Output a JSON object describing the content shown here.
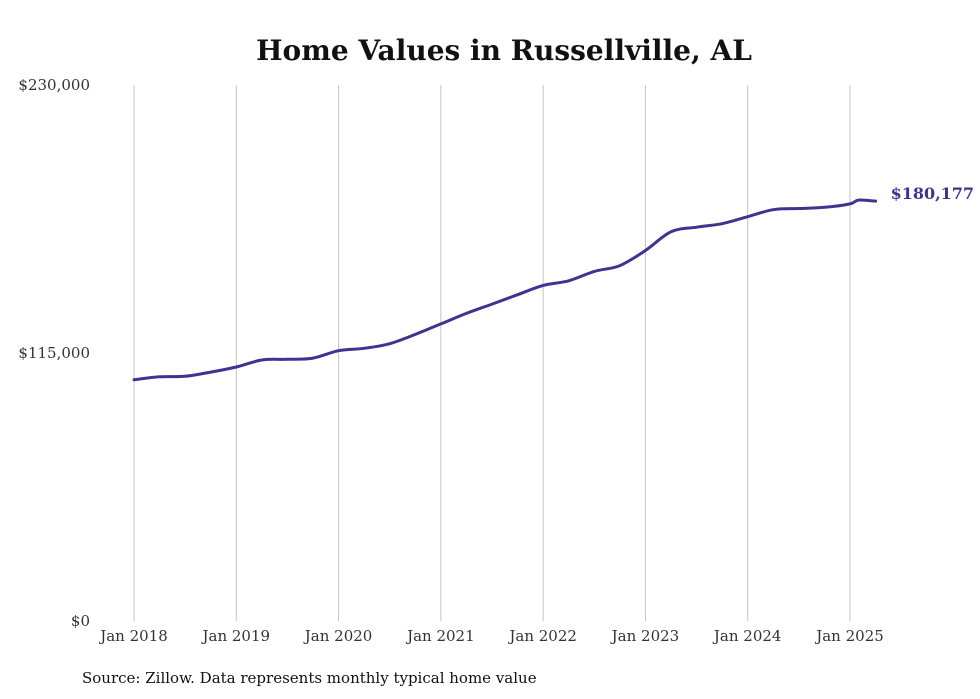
{
  "chart_data": {
    "type": "line",
    "title": "Home Values in Russellville, AL",
    "xlabel": "",
    "ylabel": "",
    "ylim": [
      0,
      230000
    ],
    "y_ticks": [
      {
        "value": 0,
        "label": "$0"
      },
      {
        "value": 115000,
        "label": "$115,000"
      },
      {
        "value": 230000,
        "label": "$230,000"
      }
    ],
    "x_ticks": [
      {
        "value": "2018-01",
        "label": "Jan 2018"
      },
      {
        "value": "2019-01",
        "label": "Jan 2019"
      },
      {
        "value": "2020-01",
        "label": "Jan 2020"
      },
      {
        "value": "2021-01",
        "label": "Jan 2021"
      },
      {
        "value": "2022-01",
        "label": "Jan 2022"
      },
      {
        "value": "2023-01",
        "label": "Jan 2023"
      },
      {
        "value": "2024-01",
        "label": "Jan 2024"
      },
      {
        "value": "2025-01",
        "label": "Jan 2025"
      }
    ],
    "grid": "vertical",
    "series": [
      {
        "color": "#3d3491",
        "points": [
          {
            "x": "2018-01",
            "y": 103500
          },
          {
            "x": "2018-04",
            "y": 104800
          },
          {
            "x": "2018-07",
            "y": 105000
          },
          {
            "x": "2018-10",
            "y": 106800
          },
          {
            "x": "2019-01",
            "y": 109000
          },
          {
            "x": "2019-04",
            "y": 112000
          },
          {
            "x": "2019-07",
            "y": 112300
          },
          {
            "x": "2019-10",
            "y": 112800
          },
          {
            "x": "2020-01",
            "y": 116000
          },
          {
            "x": "2020-04",
            "y": 117000
          },
          {
            "x": "2020-07",
            "y": 119000
          },
          {
            "x": "2020-10",
            "y": 123000
          },
          {
            "x": "2021-01",
            "y": 127500
          },
          {
            "x": "2021-04",
            "y": 132000
          },
          {
            "x": "2021-07",
            "y": 136000
          },
          {
            "x": "2021-10",
            "y": 140000
          },
          {
            "x": "2022-01",
            "y": 144000
          },
          {
            "x": "2022-04",
            "y": 146000
          },
          {
            "x": "2022-07",
            "y": 150000
          },
          {
            "x": "2022-10",
            "y": 152500
          },
          {
            "x": "2023-01",
            "y": 159000
          },
          {
            "x": "2023-04",
            "y": 167000
          },
          {
            "x": "2023-07",
            "y": 169000
          },
          {
            "x": "2023-10",
            "y": 170500
          },
          {
            "x": "2024-01",
            "y": 173500
          },
          {
            "x": "2024-04",
            "y": 176500
          },
          {
            "x": "2024-07",
            "y": 177000
          },
          {
            "x": "2024-10",
            "y": 177500
          },
          {
            "x": "2025-01",
            "y": 179000
          },
          {
            "x": "2025-02",
            "y": 180600
          },
          {
            "x": "2025-04",
            "y": 180177
          }
        ]
      }
    ],
    "end_label": "$180,177"
  },
  "footer": {
    "source": "Source: Zillow. Data represents monthly typical home value"
  }
}
